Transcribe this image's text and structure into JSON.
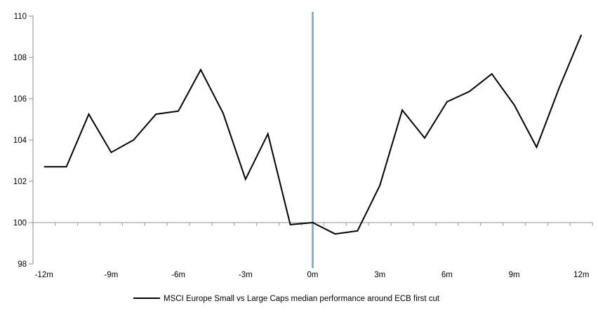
{
  "chart_data": {
    "type": "line",
    "title": "",
    "legend": "MSCI Europe Small vs Large Caps median performance around ECB first cut",
    "legend_position": "bottom",
    "grid": "off",
    "x": [
      -12,
      -11,
      -10,
      -9,
      -8,
      -7,
      -6,
      -5,
      -4,
      -3,
      -2,
      -1,
      0,
      1,
      2,
      3,
      4,
      5,
      6,
      7,
      8,
      9,
      10,
      11,
      12
    ],
    "categories": [
      "-12m",
      "-11m",
      "-10m",
      "-9m",
      "-8m",
      "-7m",
      "-6m",
      "-5m",
      "-4m",
      "-3m",
      "-2m",
      "-1m",
      "0m",
      "1m",
      "2m",
      "3m",
      "4m",
      "5m",
      "6m",
      "7m",
      "8m",
      "9m",
      "10m",
      "11m",
      "12m"
    ],
    "series": [
      {
        "name": "MSCI Europe Small vs Large Caps median performance around ECB first cut",
        "values": [
          102.7,
          102.7,
          105.25,
          103.4,
          104.0,
          105.25,
          105.4,
          107.4,
          105.3,
          102.1,
          104.3,
          99.9,
          100.0,
          99.45,
          99.6,
          101.8,
          105.45,
          104.1,
          105.85,
          106.35,
          107.2,
          105.7,
          103.65,
          106.5,
          109.1
        ]
      }
    ],
    "x_tick_labels": [
      "-12m",
      "-9m",
      "-6m",
      "-3m",
      "0m",
      "3m",
      "6m",
      "9m",
      "12m"
    ],
    "x_tick_months": [
      -12,
      -9,
      -6,
      -3,
      0,
      3,
      6,
      9,
      12
    ],
    "y_ticks": [
      98,
      100,
      102,
      104,
      106,
      108,
      110
    ],
    "y_tick_labels": [
      "98",
      "100",
      "102",
      "104",
      "106",
      "108",
      "110"
    ],
    "ylim": [
      98,
      110.4
    ],
    "baseline_value": 100,
    "event_line_month": 0,
    "colors": {
      "series": "#000000",
      "event_line": "#7DA5CD",
      "axis": "#A6A6A6",
      "text": "#000000",
      "background": "#FFFFFF"
    }
  }
}
